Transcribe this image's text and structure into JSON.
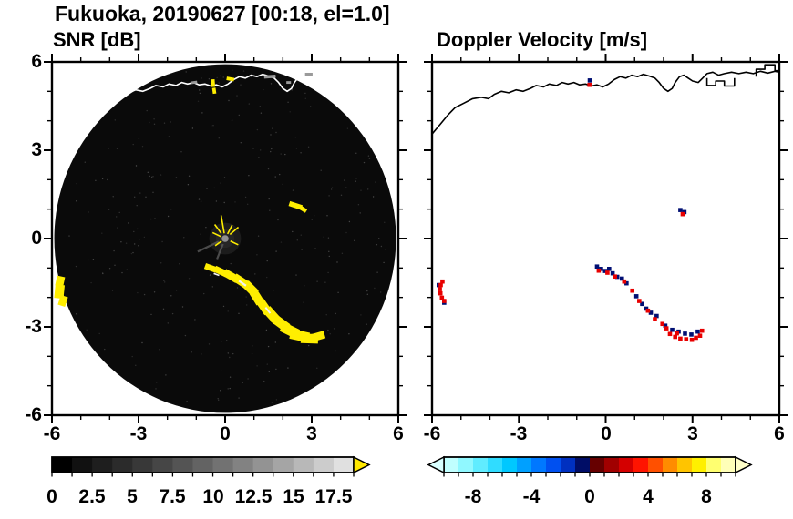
{
  "title": "Fukuoka, 20190627 [00:18, el=1.0]",
  "station": "Fukuoka",
  "date": "20190627",
  "time": "00:18",
  "elevation": "1.0",
  "panels": {
    "snr_label": "SNR [dB]",
    "vel_label": "Doppler Velocity [m/s]"
  },
  "coastline": [
    [
      -6.0,
      3.55
    ],
    [
      -5.7,
      3.9
    ],
    [
      -5.45,
      4.2
    ],
    [
      -5.2,
      4.45
    ],
    [
      -4.9,
      4.6
    ],
    [
      -4.6,
      4.75
    ],
    [
      -4.3,
      4.8
    ],
    [
      -4.05,
      4.75
    ],
    [
      -3.85,
      4.9
    ],
    [
      -3.6,
      5.0
    ],
    [
      -3.35,
      4.95
    ],
    [
      -3.1,
      5.05
    ],
    [
      -2.85,
      5.0
    ],
    [
      -2.6,
      5.1
    ],
    [
      -2.4,
      5.2
    ],
    [
      -2.15,
      5.15
    ],
    [
      -1.95,
      5.25
    ],
    [
      -1.7,
      5.2
    ],
    [
      -1.5,
      5.3
    ],
    [
      -1.3,
      5.25
    ],
    [
      -1.1,
      5.3
    ],
    [
      -0.9,
      5.22
    ],
    [
      -0.7,
      5.25
    ],
    [
      -0.5,
      5.18
    ],
    [
      -0.3,
      5.22
    ],
    [
      -0.1,
      5.15
    ],
    [
      0.1,
      5.25
    ],
    [
      0.3,
      5.4
    ],
    [
      0.5,
      5.5
    ],
    [
      0.7,
      5.45
    ],
    [
      0.9,
      5.55
    ],
    [
      1.1,
      5.5
    ],
    [
      1.3,
      5.58
    ],
    [
      1.5,
      5.52
    ],
    [
      1.7,
      5.45
    ],
    [
      1.85,
      5.3
    ],
    [
      2.0,
      5.1
    ],
    [
      2.15,
      5.0
    ],
    [
      2.3,
      5.1
    ],
    [
      2.4,
      5.3
    ],
    [
      2.55,
      5.5
    ],
    [
      2.7,
      5.55
    ],
    [
      2.85,
      5.45
    ],
    [
      3.0,
      5.35
    ],
    [
      3.2,
      5.3
    ],
    [
      3.35,
      5.45
    ],
    [
      3.5,
      5.6
    ],
    [
      3.7,
      5.65
    ],
    [
      3.9,
      5.55
    ],
    [
      4.1,
      5.6
    ],
    [
      4.35,
      5.65
    ],
    [
      4.6,
      5.6
    ],
    [
      4.85,
      5.65
    ],
    [
      5.1,
      5.6
    ],
    [
      5.35,
      5.68
    ],
    [
      5.6,
      5.62
    ],
    [
      5.85,
      5.68
    ],
    [
      6.0,
      5.65
    ]
  ],
  "harbor_outline": [
    [
      3.5,
      5.45
    ],
    [
      3.5,
      5.2
    ],
    [
      3.8,
      5.2
    ],
    [
      3.8,
      5.35
    ],
    [
      4.1,
      5.35
    ],
    [
      4.1,
      5.18
    ],
    [
      4.45,
      5.18
    ],
    [
      4.45,
      5.45
    ]
  ],
  "pier_outline": [
    [
      5.2,
      5.5
    ],
    [
      5.2,
      5.75
    ],
    [
      5.5,
      5.75
    ],
    [
      5.5,
      5.9
    ],
    [
      5.85,
      5.9
    ],
    [
      5.85,
      5.7
    ],
    [
      6.0,
      5.7
    ]
  ],
  "chart_data": [
    {
      "type": "heatmap",
      "title": "SNR [dB]",
      "xlabel": "",
      "ylabel": "",
      "xlim": [
        -6,
        6
      ],
      "ylim": [
        -6,
        6
      ],
      "xticks": [
        -6,
        -3,
        0,
        3,
        6
      ],
      "yticks": [
        -6,
        -3,
        0,
        3,
        6
      ],
      "minor_tick_step": 1,
      "grid": false,
      "background": "#ffffff",
      "scan_disk": {
        "cx": 0,
        "cy": 0,
        "r": 5.92,
        "color": "#0a0a0a"
      },
      "echo_color": "#ffee00",
      "clutter_gray": "#9a9a9a",
      "echoes_yellow": [
        [
          -0.5,
          -1.0,
          0.42,
          0.2,
          -20
        ],
        [
          -0.15,
          -1.12,
          0.46,
          0.22,
          -25
        ],
        [
          0.2,
          -1.27,
          0.52,
          0.26,
          -30
        ],
        [
          0.55,
          -1.45,
          0.55,
          0.28,
          -33
        ],
        [
          0.88,
          -1.7,
          0.5,
          0.3,
          -45
        ],
        [
          1.1,
          -2.0,
          0.46,
          0.3,
          -58
        ],
        [
          1.35,
          -2.32,
          0.5,
          0.3,
          -55
        ],
        [
          1.62,
          -2.6,
          0.55,
          0.32,
          -48
        ],
        [
          1.92,
          -2.87,
          0.6,
          0.32,
          -36
        ],
        [
          2.24,
          -3.12,
          0.62,
          0.34,
          -26
        ],
        [
          2.58,
          -3.3,
          0.66,
          0.34,
          -12
        ],
        [
          2.92,
          -3.4,
          0.6,
          0.32,
          -2
        ],
        [
          3.22,
          -3.32,
          0.46,
          0.26,
          16
        ],
        [
          -5.72,
          -1.45,
          0.28,
          0.34,
          -12
        ],
        [
          -5.74,
          -1.8,
          0.32,
          0.46,
          -6
        ],
        [
          -5.62,
          -2.12,
          0.26,
          0.34,
          -18
        ],
        [
          2.44,
          1.12,
          0.46,
          0.17,
          -18
        ],
        [
          2.7,
          1.0,
          0.26,
          0.14,
          -32
        ],
        [
          -0.42,
          5.28,
          0.13,
          0.26,
          4
        ],
        [
          -0.38,
          5.02,
          0.12,
          0.2,
          8
        ],
        [
          0.18,
          5.42,
          0.26,
          0.12,
          -10
        ]
      ],
      "echoes_gray": [
        [
          1.55,
          5.5,
          0.4,
          0.11,
          4
        ],
        [
          2.9,
          5.58,
          0.26,
          0.1,
          0
        ],
        [
          -1.08,
          5.3,
          0.22,
          0.09,
          8
        ],
        [
          2.2,
          5.3,
          0.16,
          0.09,
          0
        ]
      ],
      "echoes_white": [
        [
          0.6,
          -1.52,
          0.3,
          0.07,
          -35
        ],
        [
          1.48,
          -2.44,
          0.26,
          0.06,
          -52
        ],
        [
          -0.3,
          -1.22,
          0.2,
          0.05,
          -20
        ]
      ],
      "center_clutter": {
        "spokes": [
          [
            100,
            0.18,
            0.8
          ],
          [
            127,
            0.22,
            0.6
          ],
          [
            155,
            0.15,
            0.48
          ],
          [
            40,
            0.22,
            0.6
          ],
          [
            62,
            0.18,
            0.52
          ],
          [
            215,
            0.15,
            0.42
          ],
          [
            335,
            0.2,
            0.5
          ]
        ],
        "gray_streaks": [
          [
            205,
            0.25,
            1.05
          ],
          [
            248,
            0.2,
            0.75
          ]
        ]
      },
      "colorbar": {
        "range": [
          0,
          18.75
        ],
        "segment_step": 1.25,
        "tick_labels": [
          "0",
          "2.5",
          "5",
          "7.5",
          "10",
          "12.5",
          "15",
          "17.5"
        ],
        "label_values": [
          0,
          2.5,
          5,
          7.5,
          10,
          12.5,
          15,
          17.5
        ],
        "colors": [
          "#000000",
          "#111111",
          "#1e1e1e",
          "#2b2b2b",
          "#383838",
          "#464646",
          "#545454",
          "#636363",
          "#727272",
          "#828282",
          "#939393",
          "#a5a5a5",
          "#b8b8b8",
          "#cccccc",
          "#e0e0e0"
        ],
        "over_arrow_color": "#ffe800"
      }
    },
    {
      "type": "scatter",
      "title": "Doppler Velocity [m/s]",
      "xlabel": "",
      "ylabel": "",
      "xlim": [
        -6,
        6
      ],
      "ylim": [
        -6,
        6
      ],
      "xticks": [
        -6,
        -3,
        0,
        3,
        6
      ],
      "yticks": [
        -6,
        -3,
        0,
        3,
        6
      ],
      "minor_tick_step": 1,
      "grid": false,
      "background": "#ffffff",
      "negative_color": "#000f73",
      "positive_color": "#e80000",
      "points_negative_navy": [
        [
          -0.3,
          -0.95
        ],
        [
          -0.16,
          -1.03
        ],
        [
          -0.02,
          -1.1
        ],
        [
          0.12,
          -1.03
        ],
        [
          0.24,
          -1.18
        ],
        [
          0.56,
          -1.36
        ],
        [
          0.72,
          -1.52
        ],
        [
          1.06,
          -1.96
        ],
        [
          1.26,
          -2.22
        ],
        [
          1.56,
          -2.52
        ],
        [
          1.76,
          -2.63
        ],
        [
          2.06,
          -2.96
        ],
        [
          2.3,
          -3.1
        ],
        [
          2.52,
          -3.16
        ],
        [
          2.74,
          -3.23
        ],
        [
          2.96,
          -3.26
        ],
        [
          3.18,
          -3.16
        ],
        [
          2.58,
          0.97
        ],
        [
          2.72,
          0.9
        ],
        [
          -0.55,
          5.37
        ],
        [
          -5.77,
          -1.58
        ],
        [
          -5.58,
          -2.18
        ],
        [
          1.4,
          -2.38
        ],
        [
          0.4,
          -1.3
        ]
      ],
      "points_positive_red": [
        [
          -0.24,
          -1.09
        ],
        [
          0.06,
          -1.16
        ],
        [
          0.32,
          -1.29
        ],
        [
          0.64,
          -1.46
        ],
        [
          0.92,
          -1.77
        ],
        [
          1.16,
          -2.12
        ],
        [
          1.46,
          -2.45
        ],
        [
          1.7,
          -2.74
        ],
        [
          1.96,
          -2.9
        ],
        [
          2.22,
          -3.24
        ],
        [
          2.4,
          -3.34
        ],
        [
          2.58,
          -3.4
        ],
        [
          2.78,
          -3.42
        ],
        [
          2.98,
          -3.44
        ],
        [
          3.12,
          -3.37
        ],
        [
          3.26,
          -3.3
        ],
        [
          3.33,
          -3.13
        ],
        [
          2.66,
          0.83
        ],
        [
          -0.56,
          5.22
        ],
        [
          -5.64,
          -1.46
        ],
        [
          -5.7,
          -1.58
        ],
        [
          -5.73,
          -1.72
        ],
        [
          -5.71,
          -1.86
        ],
        [
          -5.66,
          -2.01
        ],
        [
          -5.58,
          -2.12
        ],
        [
          2.1,
          -3.05
        ],
        [
          2.46,
          -3.22
        ]
      ],
      "colorbar": {
        "range": [
          -10,
          10
        ],
        "segment_step": 1,
        "tick_labels": [
          "-8",
          "-4",
          "0",
          "4",
          "8"
        ],
        "label_values": [
          -8,
          -4,
          0,
          4,
          8
        ],
        "colors": [
          "#c0ffff",
          "#90f8ff",
          "#60ecff",
          "#30dcff",
          "#00c8ff",
          "#00a0ff",
          "#0078ff",
          "#0050f0",
          "#0030c0",
          "#000d66",
          "#660000",
          "#a00000",
          "#d40000",
          "#ff1400",
          "#ff5000",
          "#ff8c00",
          "#ffc400",
          "#fff000",
          "#ffff70",
          "#ffffb8"
        ],
        "under_arrow_color": "#d8ffff",
        "over_arrow_color": "#ffffc8"
      }
    }
  ]
}
